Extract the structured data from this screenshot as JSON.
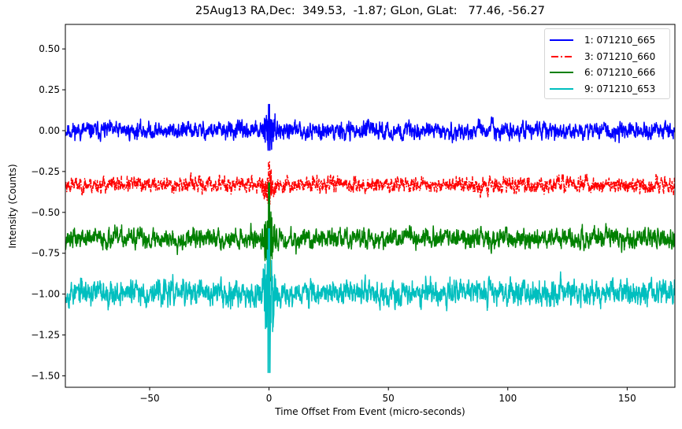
{
  "chart_data": {
    "type": "line",
    "title": "25Aug13 RA,Dec:  349.53,  -1.87; GLon, GLat:   77.46, -56.27",
    "xlabel": "Time Offset From Event (micro-seconds)",
    "ylabel": "Intensity (Counts)",
    "xlim": [
      -85.3,
      170
    ],
    "ylim": [
      -1.57,
      0.65
    ],
    "xticks": [
      -50,
      0,
      50,
      100,
      150
    ],
    "xtick_labels": [
      "−50",
      "0",
      "50",
      "100",
      "150"
    ],
    "yticks": [
      0.5,
      0.25,
      0.0,
      -0.25,
      -0.5,
      -0.75,
      -1.0,
      -1.25,
      -1.5
    ],
    "ytick_labels": [
      "0.50",
      "0.25",
      "0.00",
      "−0.25",
      "−0.50",
      "−0.75",
      "−1.00",
      "−1.25",
      "−1.50"
    ],
    "grid": false,
    "legend_position": "upper right",
    "event_time": 0,
    "series": [
      {
        "name": "1: 071210_665",
        "color": "#0000ff",
        "linestyle": "solid",
        "mean": 0.0,
        "noise": 0.03,
        "spike_max": 0.16,
        "spike_min": -0.12,
        "seed": 11
      },
      {
        "name": "3: 071210_660",
        "color": "#ff0000",
        "linestyle": "dashdot",
        "mean": -0.33,
        "noise": 0.028,
        "spike_max": -0.19,
        "spike_min": -0.45,
        "seed": 23
      },
      {
        "name": "6: 071210_666",
        "color": "#008000",
        "linestyle": "solid",
        "mean": -0.66,
        "noise": 0.035,
        "spike_max": -0.32,
        "spike_min": -0.92,
        "seed": 37
      },
      {
        "name": "9: 071210_653",
        "color": "#00bfbf",
        "linestyle": "solid",
        "mean": -0.99,
        "noise": 0.045,
        "spike_max": -0.6,
        "spike_min": -1.48,
        "seed": 53
      }
    ]
  },
  "legend": {
    "items": [
      {
        "label": "1: 071210_665"
      },
      {
        "label": "3: 071210_660"
      },
      {
        "label": "6: 071210_666"
      },
      {
        "label": "9: 071210_653"
      }
    ]
  }
}
